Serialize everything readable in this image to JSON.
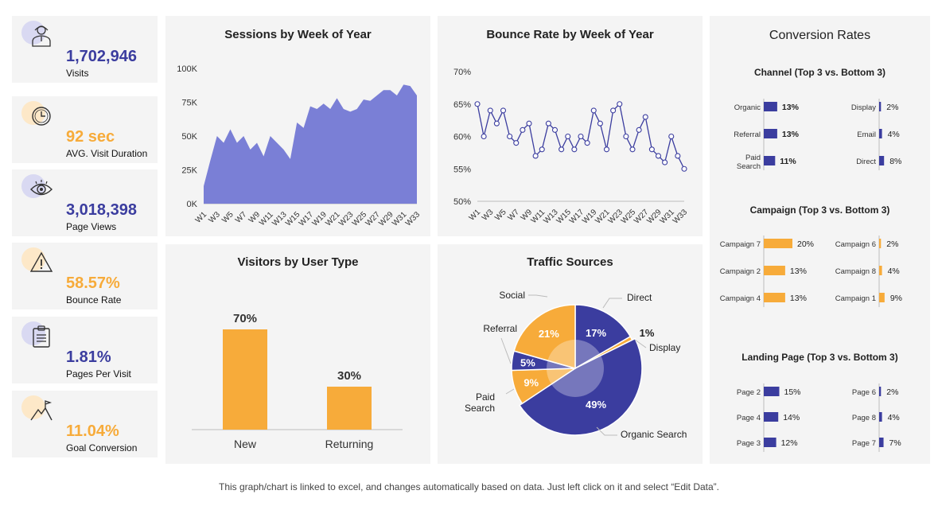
{
  "colors": {
    "navy": "#3b3d9f",
    "area": "#7a7fd6",
    "orange": "#f7ab3a",
    "lavender": "#d9d9f2",
    "peach": "#fde8c8"
  },
  "kpis": [
    {
      "value": "1,702,946",
      "label": "Visits",
      "icon": "user-icon",
      "color": "#3b3d9f",
      "circle": "#d9d9f2"
    },
    {
      "value": "92 sec",
      "label": "AVG.  Visit Duration",
      "icon": "clock-icon",
      "color": "#f7ab3a",
      "circle": "#fde8c8"
    },
    {
      "value": "3,018,398",
      "label": "Page Views",
      "icon": "eye-icon",
      "color": "#3b3d9f",
      "circle": "#d9d9f2"
    },
    {
      "value": "58.57%",
      "label": "Bounce Rate",
      "icon": "warning-icon",
      "color": "#f7ab3a",
      "circle": "#fde8c8"
    },
    {
      "value": "1.81%",
      "label": "Pages Per Visit",
      "icon": "clipboard-icon",
      "color": "#3b3d9f",
      "circle": "#d9d9f2"
    },
    {
      "value": "11.04%",
      "label": "Goal Conversion",
      "icon": "mountain-flag-icon",
      "color": "#f7ab3a",
      "circle": "#fde8c8"
    }
  ],
  "footer": "This graph/chart is linked to excel, and changes automatically based on data. Just left click on it and select “Edit Data”.",
  "chart_data": [
    {
      "type": "area",
      "title": "Sessions  by Week of Year",
      "x": [
        "W1",
        "W2",
        "W3",
        "W4",
        "W5",
        "W6",
        "W7",
        "W8",
        "W9",
        "W10",
        "W11",
        "W12",
        "W13",
        "W14",
        "W15",
        "W16",
        "W17",
        "W18",
        "W19",
        "W20",
        "W21",
        "W22",
        "W23",
        "W24",
        "W25",
        "W26",
        "W27",
        "W28",
        "W29",
        "W30",
        "W31",
        "W32",
        "W33"
      ],
      "xtick_labels": [
        "W1",
        "W3",
        "W5",
        "W7",
        "W9",
        "W11",
        "W13",
        "W15",
        "W17",
        "W19",
        "W21",
        "W23",
        "W25",
        "W27",
        "W29",
        "W31",
        "W33"
      ],
      "values": [
        13000,
        32000,
        50000,
        45000,
        55000,
        45000,
        50000,
        40000,
        45000,
        35000,
        50000,
        45000,
        40000,
        33000,
        60000,
        56000,
        72000,
        70000,
        74000,
        70000,
        78000,
        70000,
        68000,
        70000,
        77000,
        76000,
        80000,
        84000,
        84000,
        80000,
        88000,
        87000,
        80000
      ],
      "ylim": [
        0,
        100000
      ],
      "ytick_labels": [
        "0K",
        "25K",
        "50K",
        "75K",
        "100K"
      ],
      "grid": false
    },
    {
      "type": "line",
      "title": "Bounce Rate by Week of Year",
      "x": [
        "W1",
        "W2",
        "W3",
        "W4",
        "W5",
        "W6",
        "W7",
        "W8",
        "W9",
        "W10",
        "W11",
        "W12",
        "W13",
        "W14",
        "W15",
        "W16",
        "W17",
        "W18",
        "W19",
        "W20",
        "W21",
        "W22",
        "W23",
        "W24",
        "W25",
        "W26",
        "W27",
        "W28",
        "W29",
        "W30",
        "W31",
        "W32",
        "W33"
      ],
      "xtick_labels": [
        "W1",
        "W3",
        "W5",
        "W7",
        "W9",
        "W11",
        "W13",
        "W15",
        "W17",
        "W19",
        "W21",
        "W23",
        "W25",
        "W27",
        "W29",
        "W31",
        "W33"
      ],
      "values": [
        65,
        60,
        64,
        62,
        64,
        60,
        59,
        61,
        62,
        57,
        58,
        62,
        61,
        58,
        60,
        58,
        60,
        59,
        64,
        62,
        58,
        64,
        65,
        60,
        58,
        61,
        63,
        58,
        57,
        56,
        60,
        57,
        55
      ],
      "ylim": [
        50,
        70
      ],
      "ytick_labels": [
        "50%",
        "55%",
        "60%",
        "65%",
        "70%"
      ],
      "grid": false
    },
    {
      "type": "bar",
      "title": "Visitors by User Type",
      "categories": [
        "New",
        "Returning"
      ],
      "values": [
        70,
        30
      ],
      "data_labels": [
        "70%",
        "30%"
      ],
      "ylim": [
        0,
        100
      ]
    },
    {
      "type": "pie",
      "title": "Traffic Sources",
      "categories": [
        "Direct",
        "Display",
        "Organic Search",
        "Paid Search",
        "Referral",
        "Social"
      ],
      "values": [
        17,
        1,
        49,
        9,
        5,
        21
      ],
      "data_labels": [
        "17%",
        "1%",
        "49%",
        "9%",
        "5%",
        "21%"
      ],
      "slice_colors": [
        "#3b3d9f",
        "#f7ab3a",
        "#3b3d9f",
        "#f7ab3a",
        "#3b3d9f",
        "#f7ab3a"
      ],
      "callouts": [
        "Direct",
        "Display",
        "Organic Search",
        "Paid\nSearch",
        "Referral",
        "Social"
      ]
    },
    {
      "type": "bar",
      "title": "Conversion Rates",
      "groups": [
        {
          "subtitle": "Channel (Top 3 vs. Bottom 3)",
          "color": "#3b3d9f",
          "bold_top": true,
          "top": [
            {
              "label": "Organic",
              "value": 13,
              "text": "13%"
            },
            {
              "label": "Referral",
              "value": 13,
              "text": "13%"
            },
            {
              "label": "Paid\nSearch",
              "value": 11,
              "text": "11%"
            }
          ],
          "bottom": [
            {
              "label": "Display",
              "value": 2,
              "text": "2%"
            },
            {
              "label": "Email",
              "value": 4,
              "text": "4%"
            },
            {
              "label": "Direct",
              "value": 8,
              "text": "8%"
            }
          ]
        },
        {
          "subtitle": "Campaign (Top 3 vs. Bottom 3)",
          "color": "#f7ab3a",
          "bold_top": false,
          "top": [
            {
              "label": "Campaign 7",
              "value": 20,
              "text": "20%"
            },
            {
              "label": "Campaign 2",
              "value": 13,
              "text": "13%"
            },
            {
              "label": "Campaign 4",
              "value": 13,
              "text": "13%"
            }
          ],
          "bottom": [
            {
              "label": "Campaign 6",
              "value": 2,
              "text": "2%"
            },
            {
              "label": "Campaign 8",
              "value": 4,
              "text": "4%"
            },
            {
              "label": "Campaign 1",
              "value": 9,
              "text": "9%"
            }
          ]
        },
        {
          "subtitle": "Landing Page (Top 3 vs. Bottom 3)",
          "color": "#3b3d9f",
          "bold_top": false,
          "top": [
            {
              "label": "Page 2",
              "value": 15,
              "text": "15%"
            },
            {
              "label": "Page 4",
              "value": 14,
              "text": "14%"
            },
            {
              "label": "Page 3",
              "value": 12,
              "text": "12%"
            }
          ],
          "bottom": [
            {
              "label": "Page 6",
              "value": 2,
              "text": "2%"
            },
            {
              "label": "Page 8",
              "value": 4,
              "text": "4%"
            },
            {
              "label": "Page 7",
              "value": 7,
              "text": "7%"
            }
          ]
        }
      ]
    }
  ]
}
